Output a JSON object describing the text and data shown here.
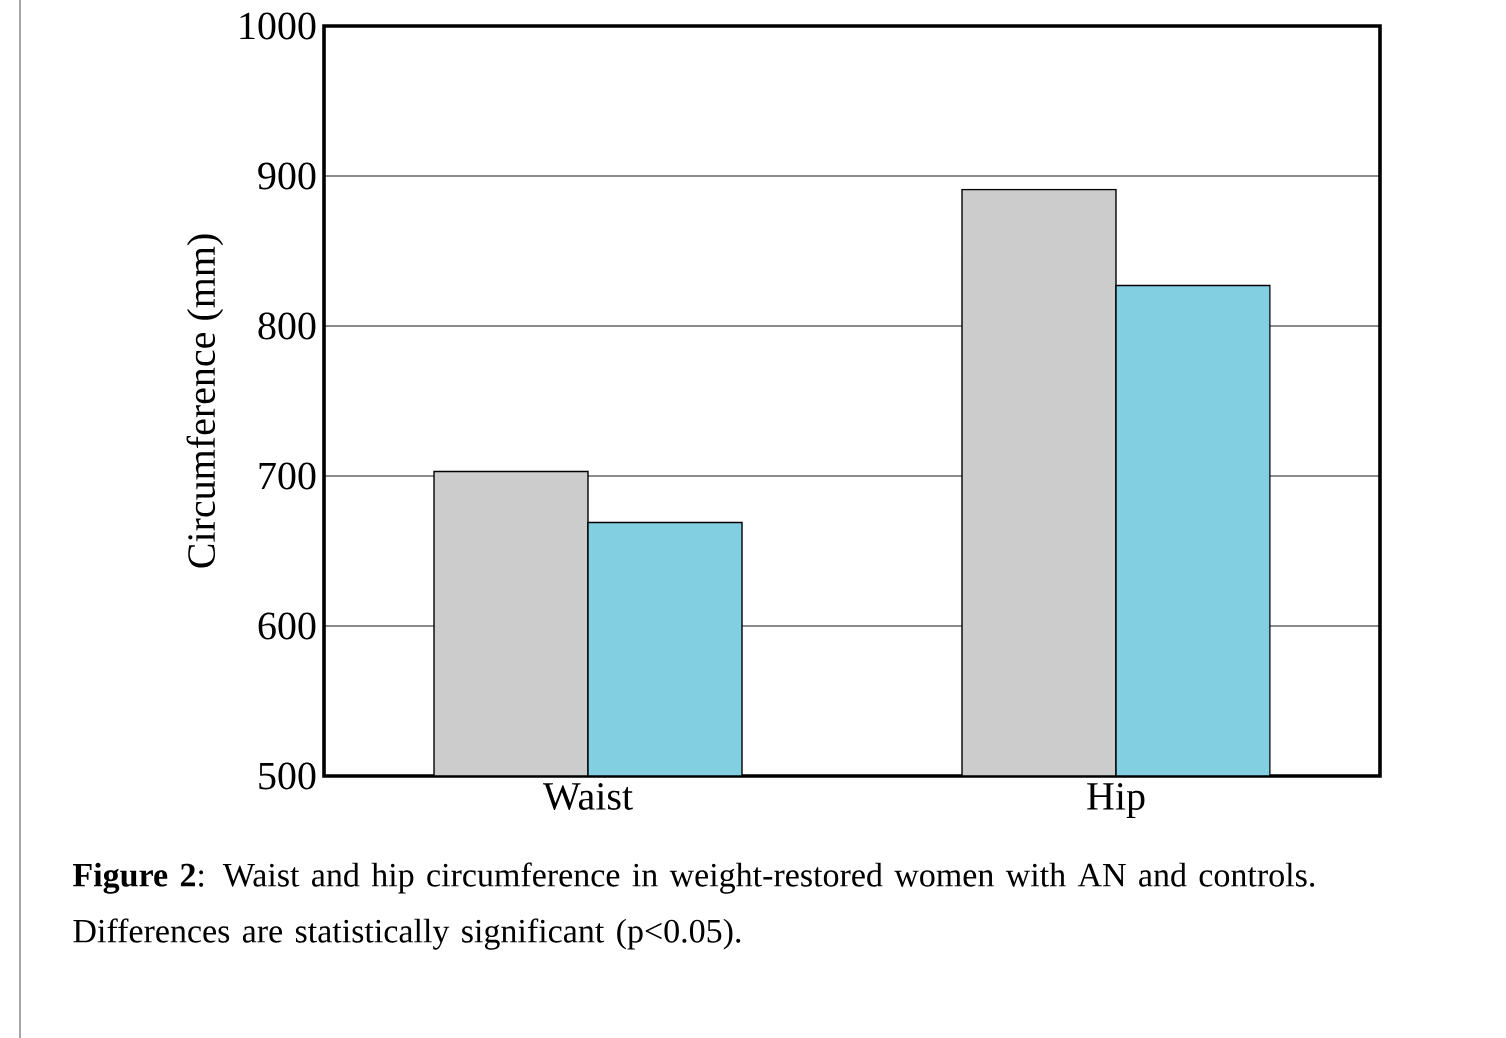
{
  "chart_data": {
    "type": "bar",
    "ylabel": "Circumference (mm)",
    "categories": [
      "Waist",
      "Hip"
    ],
    "series": [
      {
        "color": "#cccccc",
        "values": [
          703,
          891
        ]
      },
      {
        "color": "#83cfe2",
        "values": [
          669,
          827
        ]
      }
    ],
    "ylim": [
      500,
      1000
    ],
    "yticks": [
      500,
      600,
      700,
      800,
      900,
      1000
    ],
    "grid": "y",
    "annotations": [
      "**Figure 2**: Waist and hip circumference in weight-restored women with AN and controls. Differences are statistically significant (p<0.05)."
    ]
  }
}
